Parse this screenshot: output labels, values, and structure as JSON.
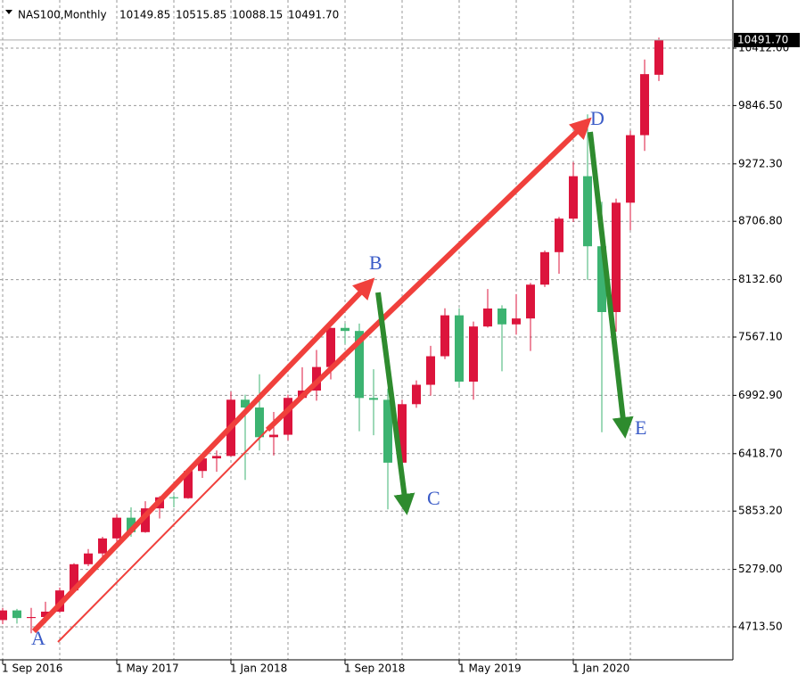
{
  "header": {
    "symbol": "NAS100,Monthly",
    "ohlc": [
      "10149.85",
      "10515.85",
      "10088.15",
      "10491.70"
    ]
  },
  "chart_data": {
    "type": "candlestick",
    "categories": [
      "1 Sep 2016",
      null,
      null,
      null,
      null,
      null,
      null,
      null,
      "1 May 2017",
      null,
      null,
      null,
      null,
      null,
      null,
      null,
      "1 Jan 2018",
      null,
      null,
      null,
      null,
      null,
      null,
      null,
      "1 Sep 2018",
      null,
      null,
      null,
      null,
      null,
      null,
      null,
      "1 May 2019",
      null,
      null,
      null,
      null,
      null,
      null,
      null,
      "1 Jan 2020",
      null,
      null,
      null,
      null,
      null,
      null
    ],
    "open": [
      4780,
      4875,
      4800,
      4810,
      4863,
      5072,
      5330,
      5436,
      5584,
      5788,
      5646,
      5880,
      5989,
      5980,
      6248,
      6372,
      6396,
      6950,
      6873,
      6581,
      6605,
      6968,
      7040,
      7272,
      7657,
      7627,
      6967,
      6949,
      6330,
      6906,
      7097,
      7378,
      7781,
      7128,
      7671,
      7848,
      7692,
      7750,
      8083,
      8403,
      8733,
      9151,
      8461,
      7813,
      8890,
      9555,
      10149.85
    ],
    "high": [
      4900,
      4890,
      4900,
      4960,
      5100,
      5340,
      5480,
      5600,
      5820,
      5890,
      5950,
      6000,
      6010,
      6260,
      6390,
      6450,
      7030,
      7000,
      7200,
      6830,
      7000,
      7270,
      7440,
      7660,
      7700,
      7700,
      7250,
      7060,
      6950,
      7140,
      7480,
      7850,
      7850,
      7720,
      8040,
      7880,
      7990,
      8100,
      8420,
      8750,
      9290,
      9760,
      8900,
      8930,
      9600,
      10300,
      10515.85
    ],
    "low": [
      4740,
      4745,
      4650,
      4750,
      4850,
      5060,
      5310,
      5360,
      5550,
      5600,
      5640,
      5780,
      5890,
      5975,
      6180,
      6240,
      6390,
      6160,
      6450,
      6400,
      6550,
      6960,
      6940,
      7150,
      7500,
      6640,
      6600,
      5870,
      6300,
      6870,
      6990,
      7350,
      7070,
      6950,
      7660,
      7230,
      7590,
      7430,
      8060,
      8190,
      8700,
      8130,
      6630,
      7620,
      8620,
      9400,
      10088.15
    ],
    "close": [
      4875,
      4800,
      4810,
      4863,
      5072,
      5330,
      5436,
      5584,
      5788,
      5646,
      5880,
      5989,
      5980,
      6248,
      6372,
      6396,
      6950,
      6873,
      6581,
      6605,
      6968,
      7040,
      7272,
      7657,
      7627,
      6967,
      6949,
      6330,
      6906,
      7097,
      7378,
      7781,
      7128,
      7671,
      7848,
      7692,
      7750,
      8083,
      8403,
      8733,
      9151,
      8461,
      7813,
      8890,
      9555,
      10156,
      10491.7
    ],
    "up_color": "#dc143c",
    "down_color": "#3cb371",
    "ylim": [
      4388.6,
      10886
    ],
    "yticks": [
      {
        "value": 4713.5,
        "label": "4713.50"
      },
      {
        "value": 5279,
        "label": "5279.00"
      },
      {
        "value": 5853.2,
        "label": "5853.20"
      },
      {
        "value": 6418.7,
        "label": "6418.70"
      },
      {
        "value": 6992.9,
        "label": "6992.90"
      },
      {
        "value": 7567.1,
        "label": "7567.10"
      },
      {
        "value": 8132.6,
        "label": "8132.60"
      },
      {
        "value": 8706.8,
        "label": "8706.80"
      },
      {
        "value": 9272.3,
        "label": "9272.30"
      },
      {
        "value": 9846.5,
        "label": "9846.50"
      },
      {
        "value": 10412,
        "label": "10412.00"
      }
    ],
    "current_price": {
      "value": 10491.7,
      "label": "10491.70"
    },
    "annotations": [
      "A",
      "B",
      "C",
      "D",
      "E"
    ],
    "grid": true
  }
}
